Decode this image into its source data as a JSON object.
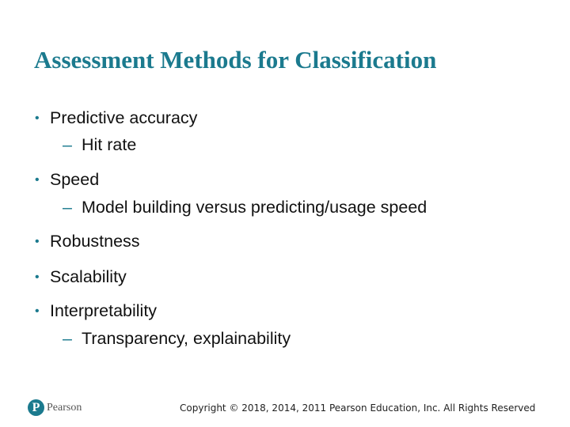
{
  "title": "Assessment Methods for Classification",
  "bullets": [
    {
      "text": "Predictive accuracy",
      "sub": [
        "Hit rate"
      ]
    },
    {
      "text": "Speed",
      "sub": [
        "Model building versus predicting/usage speed"
      ]
    },
    {
      "text": "Robustness",
      "sub": []
    },
    {
      "text": "Scalability",
      "sub": []
    },
    {
      "text": "Interpretability",
      "sub": [
        "Transparency, explainability"
      ]
    }
  ],
  "markers": {
    "bullet": "•",
    "dash": "–"
  },
  "footer": {
    "copyright": "Copyright © 2018, 2014, 2011 Pearson Education, Inc. All Rights Reserved",
    "logo_text": "Pearson",
    "logo_letter": "P"
  },
  "colors": {
    "accent": "#1b7a8e"
  }
}
